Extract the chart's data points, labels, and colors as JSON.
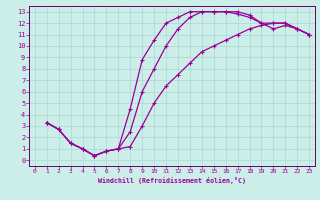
{
  "xlabel": "Windchill (Refroidissement éolien,°C)",
  "bg_color": "#cceee8",
  "grid_color": "#aad8d0",
  "line_color": "#990099",
  "axis_color": "#660066",
  "xlim": [
    -0.5,
    23.5
  ],
  "ylim": [
    -0.5,
    13.5
  ],
  "xticks": [
    0,
    1,
    2,
    3,
    4,
    5,
    6,
    7,
    8,
    9,
    10,
    11,
    12,
    13,
    14,
    15,
    16,
    17,
    18,
    19,
    20,
    21,
    22,
    23
  ],
  "yticks": [
    0,
    1,
    2,
    3,
    4,
    5,
    6,
    7,
    8,
    9,
    10,
    11,
    12,
    13
  ],
  "line1_x": [
    1,
    2,
    3,
    4,
    5,
    6,
    7,
    8,
    9,
    10,
    11,
    12,
    13,
    14,
    15,
    16,
    17,
    18,
    19,
    20,
    21,
    22,
    23
  ],
  "line1_y": [
    3.3,
    2.7,
    1.5,
    1.0,
    0.4,
    0.8,
    1.0,
    4.5,
    8.8,
    10.5,
    12.0,
    12.5,
    13.0,
    13.0,
    13.0,
    13.0,
    13.0,
    12.7,
    12.0,
    12.0,
    12.0,
    11.5,
    11.0
  ],
  "line2_x": [
    1,
    2,
    3,
    4,
    5,
    6,
    7,
    8,
    9,
    10,
    11,
    12,
    13,
    14,
    15,
    16,
    17,
    18,
    19,
    20,
    21,
    22,
    23
  ],
  "line2_y": [
    3.3,
    2.7,
    1.5,
    1.0,
    0.4,
    0.8,
    1.0,
    1.2,
    3.0,
    5.0,
    6.5,
    7.5,
    8.5,
    9.5,
    10.0,
    10.5,
    11.0,
    11.5,
    11.8,
    12.0,
    12.0,
    11.5,
    11.0
  ],
  "line3_x": [
    1,
    2,
    3,
    4,
    5,
    6,
    7,
    8,
    9,
    10,
    11,
    12,
    13,
    14,
    15,
    16,
    17,
    18,
    19,
    20,
    21,
    22,
    23
  ],
  "line3_y": [
    3.3,
    2.7,
    1.5,
    1.0,
    0.4,
    0.8,
    1.0,
    2.5,
    6.0,
    8.0,
    10.0,
    11.5,
    12.5,
    13.0,
    13.0,
    13.0,
    12.8,
    12.5,
    12.0,
    11.5,
    11.8,
    11.5,
    11.0
  ]
}
